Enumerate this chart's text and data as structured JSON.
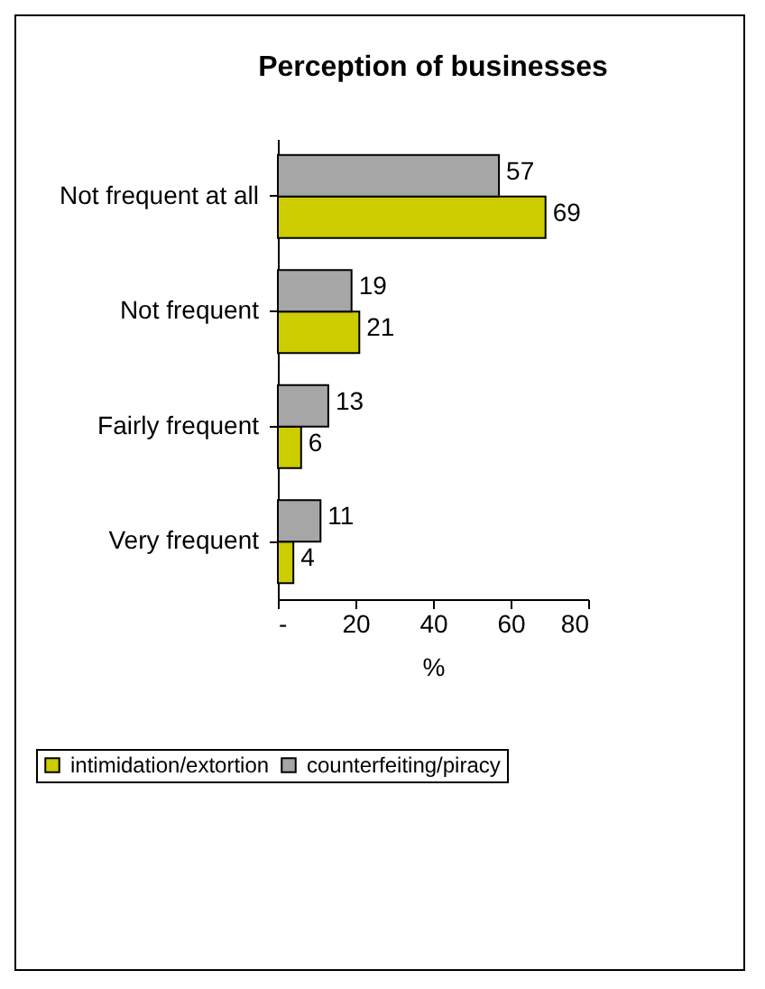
{
  "chart_data": {
    "type": "bar",
    "orientation": "horizontal",
    "title": "Perception of businesses",
    "xlabel": "%",
    "categories": [
      "Not frequent at all",
      "Not frequent",
      "Fairly frequent",
      "Very frequent"
    ],
    "series": [
      {
        "name": "intimidation/extortion",
        "color": "#cccc00",
        "values": [
          69,
          21,
          6,
          4
        ]
      },
      {
        "name": "counterfeiting/piracy",
        "color": "#a6a6a6",
        "values": [
          57,
          19,
          13,
          11
        ]
      }
    ],
    "xlim": [
      0,
      80
    ],
    "xticks": [
      {
        "value": 0,
        "label": "-"
      },
      20,
      40,
      60,
      80
    ],
    "data_labels": true,
    "grid": false,
    "legend": "bottom"
  }
}
